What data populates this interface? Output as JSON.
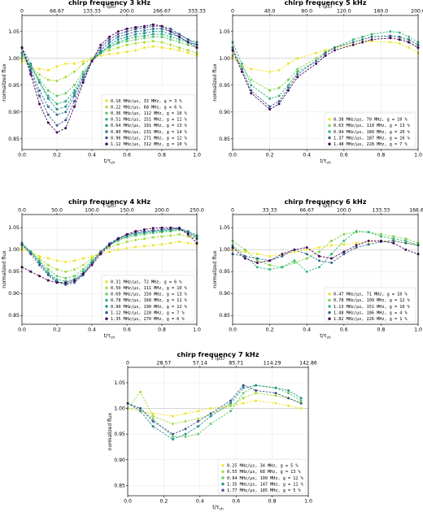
{
  "figure": {
    "colors": {
      "series": [
        "#e5e419",
        "#a5db36",
        "#5ec962",
        "#2aac7f",
        "#21918d",
        "#2c728e",
        "#3b518b",
        "#440154"
      ],
      "refline": "#888888",
      "axis": "#000000"
    }
  },
  "chart_data": [
    {
      "type": "line",
      "title": "chirp frequency 3 kHz",
      "xlabel": "t/τ",
      "xlabel_sub": "ch",
      "ylabel": "normalized flux",
      "top_xlabel": "t (μs)",
      "xlim": [
        0,
        1
      ],
      "ylim": [
        0.83,
        1.08
      ],
      "xticks": [
        "0.0",
        "0.2",
        "0.4",
        "0.6",
        "0.8",
        "1.0"
      ],
      "yticks": [
        "0.85",
        "0.90",
        "0.95",
        "1.00",
        "1.05"
      ],
      "top_xticks": [
        "0",
        "66.67",
        "133.33",
        "200.0",
        "266.67",
        "333.33"
      ],
      "reference_y": 1.0,
      "grid": true,
      "legend_position": "lower-right",
      "x": [
        0,
        0.05,
        0.1,
        0.15,
        0.2,
        0.25,
        0.3,
        0.35,
        0.4,
        0.45,
        0.5,
        0.55,
        0.6,
        0.65,
        0.7,
        0.75,
        0.8,
        0.85,
        0.9,
        0.95,
        1.0
      ],
      "series": [
        {
          "name": "0.10 MHz/μs,  33 MHz,  g =  3 %",
          "color": "#f0e32a",
          "values": [
            0.995,
            0.985,
            0.98,
            0.978,
            0.985,
            0.99,
            0.99,
            0.995,
            1.0,
            1.005,
            1.008,
            1.01,
            1.012,
            1.015,
            1.02,
            1.022,
            1.02,
            1.018,
            1.015,
            1.01,
            1.005
          ]
        },
        {
          "name": "0.22 MHz/μs,  68 MHz,  g =  6 %",
          "color": "#a5db36",
          "values": [
            1.0,
            0.985,
            0.97,
            0.96,
            0.958,
            0.965,
            0.975,
            0.99,
            1.0,
            1.01,
            1.015,
            1.02,
            1.025,
            1.028,
            1.03,
            1.032,
            1.03,
            1.025,
            1.02,
            1.015,
            1.01
          ]
        },
        {
          "name": "0.36 MHz/μs, 112 MHz,  g = 10 %",
          "color": "#5ec962",
          "values": [
            1.005,
            0.985,
            0.96,
            0.94,
            0.93,
            0.935,
            0.95,
            0.975,
            0.995,
            1.01,
            1.02,
            1.028,
            1.032,
            1.035,
            1.038,
            1.04,
            1.04,
            1.035,
            1.03,
            1.025,
            1.02
          ]
        },
        {
          "name": "0.51 MHz/μs, 151 MHz,  g = 11 %",
          "color": "#2aac7f",
          "values": [
            1.01,
            0.985,
            0.955,
            0.93,
            0.915,
            0.92,
            0.94,
            0.97,
            0.995,
            1.012,
            1.022,
            1.03,
            1.036,
            1.04,
            1.042,
            1.045,
            1.045,
            1.04,
            1.035,
            1.03,
            1.025
          ]
        },
        {
          "name": "0.64 MHz/μs, 191 MHz,  g = 13 %",
          "color": "#21918d",
          "values": [
            1.02,
            0.99,
            0.955,
            0.925,
            0.905,
            0.91,
            0.935,
            0.965,
            0.995,
            1.01,
            1.025,
            1.035,
            1.04,
            1.045,
            1.047,
            1.05,
            1.05,
            1.045,
            1.04,
            1.03,
            1.025
          ]
        },
        {
          "name": "0.80 MHz/μs, 231 MHz,  g = 14 %",
          "color": "#2c728e",
          "values": [
            1.02,
            0.98,
            0.94,
            0.91,
            0.895,
            0.9,
            0.93,
            0.965,
            0.995,
            1.015,
            1.03,
            1.04,
            1.045,
            1.05,
            1.052,
            1.055,
            1.055,
            1.05,
            1.045,
            1.035,
            1.03
          ]
        },
        {
          "name": "0.96 MHz/μs, 271 MHz,  g = 12 %",
          "color": "#3b518b",
          "values": [
            1.02,
            0.975,
            0.93,
            0.895,
            0.875,
            0.885,
            0.92,
            0.96,
            0.995,
            1.02,
            1.035,
            1.045,
            1.05,
            1.055,
            1.057,
            1.06,
            1.06,
            1.055,
            1.045,
            1.035,
            1.025
          ]
        },
        {
          "name": "1.12 MHz/μs, 312 MHz,  g = 10 %",
          "color": "#440154",
          "values": [
            1.02,
            0.97,
            0.915,
            0.88,
            0.862,
            0.87,
            0.91,
            0.955,
            0.995,
            1.025,
            1.04,
            1.05,
            1.055,
            1.058,
            1.06,
            1.063,
            1.06,
            1.05,
            1.04,
            1.03,
            1.02
          ]
        }
      ]
    },
    {
      "type": "line",
      "title": "chirp frequency 5 kHz",
      "xlabel": "t/τ",
      "xlabel_sub": "ch",
      "ylabel": "normalized flux",
      "top_xlabel": "t (μs)",
      "xlim": [
        0,
        1
      ],
      "ylim": [
        0.83,
        1.08
      ],
      "xticks": [
        "0.0",
        "0.2",
        "0.4",
        "0.6",
        "0.8",
        "1.0"
      ],
      "yticks": [
        "0.85",
        "0.90",
        "0.95",
        "1.00",
        "1.05"
      ],
      "top_xticks": [
        "0",
        "40.0",
        "80.0",
        "120.0",
        "160.0",
        "200.0"
      ],
      "reference_y": 1.0,
      "grid": true,
      "legend_position": "lower-right",
      "x": [
        0,
        0.05,
        0.1,
        0.2,
        0.25,
        0.3,
        0.35,
        0.45,
        0.5,
        0.55,
        0.65,
        0.7,
        0.75,
        0.85,
        0.9,
        0.95,
        1.0
      ],
      "series": [
        {
          "name": "0.38 MHz/μs,  70 MHz,  g = 10 %",
          "color": "#f0e32a",
          "values": [
            1.0,
            0.99,
            0.98,
            0.975,
            0.978,
            0.99,
            1.0,
            1.01,
            1.015,
            1.02,
            1.025,
            1.03,
            1.032,
            1.03,
            1.028,
            1.02,
            1.01
          ]
        },
        {
          "name": "0.63 MHz/μs, 110 MHz,  g = 13 %",
          "color": "#7fd34e",
          "values": [
            1.005,
            0.985,
            0.96,
            0.94,
            0.945,
            0.96,
            0.98,
            1.0,
            1.012,
            1.02,
            1.03,
            1.035,
            1.04,
            1.042,
            1.04,
            1.03,
            1.02
          ]
        },
        {
          "name": "0.94 MHz/μs, 189 MHz,  g = 20 %",
          "color": "#35b779",
          "values": [
            1.03,
            0.99,
            0.95,
            0.925,
            0.93,
            0.95,
            0.975,
            0.995,
            1.01,
            1.02,
            1.035,
            1.04,
            1.045,
            1.05,
            1.048,
            1.04,
            1.03
          ]
        },
        {
          "name": "1.37 MHz/μs, 187 MHz,  g = 16 %",
          "color": "#31688e",
          "values": [
            1.02,
            0.98,
            0.94,
            0.91,
            0.92,
            0.945,
            0.97,
            0.995,
            1.01,
            1.02,
            1.03,
            1.035,
            1.04,
            1.042,
            1.04,
            1.035,
            1.025
          ]
        },
        {
          "name": "1.48 MHz/μs, 228 MHz,  g =  7 %",
          "color": "#440154",
          "values": [
            1.015,
            0.975,
            0.935,
            0.905,
            0.915,
            0.94,
            0.965,
            0.99,
            1.005,
            1.015,
            1.025,
            1.03,
            1.035,
            1.038,
            1.035,
            1.03,
            1.02
          ]
        }
      ]
    },
    {
      "type": "line",
      "title": "chirp frequency 4 kHz",
      "xlabel": "t/τ",
      "xlabel_sub": "ch",
      "ylabel": "normalized flux",
      "top_xlabel": "t (μs)",
      "xlim": [
        0,
        1
      ],
      "ylim": [
        0.83,
        1.08
      ],
      "xticks": [
        "0.0",
        "0.2",
        "0.4",
        "0.6",
        "0.8",
        "1.0"
      ],
      "yticks": [
        "0.85",
        "0.90",
        "0.95",
        "1.00",
        "1.05"
      ],
      "top_xticks": [
        "0.0",
        "50.0",
        "100.0",
        "150.0",
        "200.0",
        "250.0"
      ],
      "reference_y": 1.0,
      "grid": true,
      "legend_position": "lower-right",
      "x": [
        0,
        0.05,
        0.1,
        0.15,
        0.2,
        0.25,
        0.3,
        0.35,
        0.4,
        0.45,
        0.5,
        0.55,
        0.6,
        0.65,
        0.7,
        0.75,
        0.8,
        0.85,
        0.9,
        0.95,
        1.0
      ],
      "series": [
        {
          "name": "0.31 MHz/μs,  72 MHz,  g =  6 %",
          "color": "#f0e32a",
          "values": [
            1.0,
            0.995,
            0.985,
            0.98,
            0.975,
            0.972,
            0.975,
            0.98,
            0.985,
            0.99,
            0.995,
            1.0,
            1.003,
            1.006,
            1.008,
            1.01,
            1.012,
            1.015,
            1.018,
            1.015,
            1.012
          ]
        },
        {
          "name": "0.50 MHz/μs, 111 MHz,  g = 10 %",
          "color": "#a5db36",
          "values": [
            1.005,
            0.995,
            0.98,
            0.965,
            0.955,
            0.95,
            0.955,
            0.965,
            0.98,
            0.995,
            1.005,
            1.012,
            1.018,
            1.022,
            1.025,
            1.028,
            1.03,
            1.032,
            1.035,
            1.03,
            1.025
          ]
        },
        {
          "name": "0.69 MHz/μs, 150 MHz,  g = 13 %",
          "color": "#5ec962",
          "values": [
            1.01,
            0.995,
            0.975,
            0.955,
            0.94,
            0.935,
            0.94,
            0.955,
            0.975,
            0.995,
            1.01,
            1.02,
            1.028,
            1.032,
            1.035,
            1.038,
            1.04,
            1.042,
            1.045,
            1.04,
            1.03
          ]
        },
        {
          "name": "0.78 MHz/μs, 168 MHz,  g = 11 %",
          "color": "#2aac7f",
          "values": [
            1.012,
            0.995,
            0.972,
            0.948,
            0.932,
            0.928,
            0.933,
            0.95,
            0.972,
            0.995,
            1.012,
            1.022,
            1.03,
            1.035,
            1.038,
            1.04,
            1.042,
            1.044,
            1.046,
            1.04,
            1.03
          ]
        },
        {
          "name": "0.90 MHz/μs, 190 MHz,  g = 12 %",
          "color": "#21918d",
          "values": [
            1.015,
            0.995,
            0.97,
            0.945,
            0.928,
            0.922,
            0.928,
            0.945,
            0.97,
            0.995,
            1.012,
            1.024,
            1.032,
            1.037,
            1.04,
            1.042,
            1.044,
            1.046,
            1.048,
            1.042,
            1.032
          ]
        },
        {
          "name": "1.12 MHz/μs, 228 MHz,  g =  7 %",
          "color": "#3b518b",
          "values": [
            1.012,
            0.99,
            0.965,
            0.942,
            0.926,
            0.92,
            0.925,
            0.942,
            0.968,
            0.995,
            1.014,
            1.026,
            1.034,
            1.039,
            1.042,
            1.044,
            1.046,
            1.048,
            1.05,
            1.038,
            1.025
          ]
        },
        {
          "name": "1.35 MHz/μs, 270 MHz,  g =  6 %",
          "color": "#440154",
          "values": [
            0.96,
            0.95,
            0.94,
            0.93,
            0.925,
            0.925,
            0.93,
            0.945,
            0.965,
            0.99,
            1.01,
            1.025,
            1.035,
            1.042,
            1.046,
            1.049,
            1.05,
            1.05,
            1.048,
            1.035,
            1.015
          ]
        }
      ]
    },
    {
      "type": "line",
      "title": "chirp frequency 6 kHz",
      "xlabel": "t/τ",
      "xlabel_sub": "ch",
      "ylabel": "normalized flux",
      "top_xlabel": "t (μs)",
      "xlim": [
        0,
        1
      ],
      "ylim": [
        0.83,
        1.08
      ],
      "xticks": [
        "0.0",
        "0.2",
        "0.4",
        "0.6",
        "0.8",
        "1.0"
      ],
      "yticks": [
        "0.85",
        "0.90",
        "0.95",
        "1.00",
        "1.05"
      ],
      "top_xticks": [
        "0",
        "33.33",
        "66.67",
        "100.0",
        "133.33",
        "166.67"
      ],
      "reference_y": 1.0,
      "grid": true,
      "legend_position": "lower-right",
      "x": [
        0,
        0.067,
        0.133,
        0.2,
        0.267,
        0.333,
        0.4,
        0.467,
        0.533,
        0.6,
        0.667,
        0.733,
        0.8,
        0.867,
        0.933,
        1.0
      ],
      "series": [
        {
          "name": "0.47 MHz/μs,  71 MHz,  g = 10 %",
          "color": "#f0e32a",
          "values": [
            1.0,
            0.995,
            0.99,
            0.985,
            0.99,
            0.995,
            1.0,
            1.005,
            1.01,
            1.012,
            1.015,
            1.018,
            1.02,
            1.02,
            1.015,
            1.01
          ]
        },
        {
          "name": "0.78 MHz/μs, 109 MHz,  g = 12 %",
          "color": "#7fd34e",
          "values": [
            1.02,
            1.0,
            0.975,
            0.965,
            0.96,
            0.97,
            0.98,
            0.995,
            1.02,
            1.035,
            1.04,
            1.04,
            1.035,
            1.03,
            1.025,
            1.015
          ]
        },
        {
          "name": "1.13 MHz/μs, 151 MHz,  g = 10 %",
          "color": "#35b779",
          "values": [
            1.01,
            0.985,
            0.96,
            0.955,
            0.96,
            0.975,
            0.95,
            0.96,
            0.99,
            1.02,
            1.042,
            1.04,
            1.03,
            1.025,
            1.02,
            1.01
          ]
        },
        {
          "name": "1.48 MHz/μs, 186 MHz,  g =  4 %",
          "color": "#31688e",
          "values": [
            0.99,
            0.985,
            0.98,
            0.975,
            0.985,
            1.0,
            0.99,
            0.975,
            0.97,
            0.99,
            1.005,
            1.012,
            1.018,
            1.02,
            1.015,
            1.01
          ]
        },
        {
          "name": "1.82 MHz/μs, 226 MHz,  g =  1 %",
          "color": "#440154",
          "values": [
            1.005,
            0.98,
            0.97,
            0.975,
            0.99,
            1.0,
            1.005,
            0.985,
            0.98,
            0.995,
            1.01,
            1.02,
            1.02,
            1.015,
            1.0,
            0.99
          ]
        }
      ]
    },
    {
      "type": "line",
      "title": "chirp frequency 7 kHz",
      "xlabel": "t/τ",
      "xlabel_sub": "ch",
      "ylabel": "normalized flux",
      "top_xlabel": "t (μs)",
      "xlim": [
        0,
        1
      ],
      "ylim": [
        0.83,
        1.08
      ],
      "xticks": [
        "0.0",
        "0.2",
        "0.4",
        "0.6",
        "0.8",
        "1.0"
      ],
      "yticks": [
        "0.85",
        "0.90",
        "0.95",
        "1.00",
        "1.05"
      ],
      "top_xticks": [
        "0",
        "28.57",
        "57.14",
        "85.71",
        "114.29",
        "142.86"
      ],
      "reference_y": 1.0,
      "grid": true,
      "legend_position": "lower-right",
      "x": [
        0,
        0.07,
        0.14,
        0.25,
        0.32,
        0.39,
        0.46,
        0.57,
        0.64,
        0.71,
        0.82,
        0.89,
        0.96
      ],
      "series": [
        {
          "name": "0.25 MHz/μs,  34 MHz,  g =  5 %",
          "color": "#f0e32a",
          "values": [
            1.0,
            0.995,
            0.99,
            0.985,
            0.99,
            0.995,
            1.0,
            1.005,
            1.01,
            1.015,
            1.01,
            1.005,
            1.0
          ]
        },
        {
          "name": "0.55 MHz/μs,  68 MHz,  g = 13 %",
          "color": "#a5db36",
          "values": [
            1.0,
            1.032,
            0.985,
            0.97,
            0.975,
            0.98,
            0.99,
            1.005,
            1.02,
            1.03,
            1.025,
            1.02,
            1.01
          ]
        },
        {
          "name": "0.94 MHz/μs, 109 MHz,  g = 12 %",
          "color": "#5ec962",
          "values": [
            1.01,
            1.0,
            0.98,
            0.945,
            0.945,
            0.95,
            0.97,
            0.995,
            1.03,
            1.045,
            1.04,
            1.03,
            1.015
          ]
        },
        {
          "name": "1.35 MHz/μs, 147 MHz,  g = 11 %",
          "color": "#21918d",
          "values": [
            1.01,
            0.995,
            0.965,
            0.94,
            0.95,
            0.965,
            0.985,
            1.01,
            1.04,
            1.045,
            1.04,
            1.035,
            1.02
          ]
        },
        {
          "name": "1.77 MHz/μs, 185 MHz,  g =  5 %",
          "color": "#3b518b",
          "values": [
            1.01,
            1.0,
            0.975,
            0.95,
            0.96,
            0.975,
            0.99,
            1.015,
            1.045,
            1.035,
            1.03,
            1.02,
            1.01
          ]
        }
      ]
    }
  ]
}
